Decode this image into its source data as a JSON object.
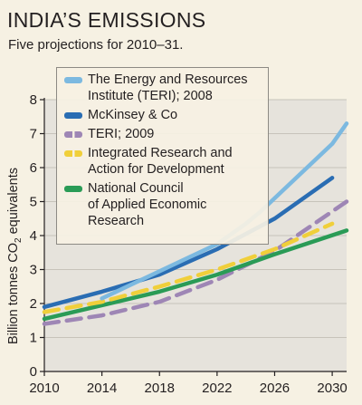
{
  "title": "INDIA’S EMISSIONS",
  "subtitle": "Five projections for 2010–31.",
  "chart_data": {
    "type": "line",
    "title": "INDIA’S EMISSIONS",
    "subtitle": "Five projections for 2010–31.",
    "xlabel": "",
    "ylabel": "Billion tonnes CO2 equivalents",
    "ylabel_main": "Billion tonnes CO",
    "ylabel_sub": "2",
    "ylabel_tail": " equivalents",
    "xlim": [
      2010,
      2031
    ],
    "ylim": [
      0,
      8
    ],
    "x_ticks": [
      2010,
      2014,
      2018,
      2022,
      2026,
      2030
    ],
    "y_ticks": [
      0,
      1,
      2,
      3,
      4,
      5,
      6,
      7,
      8
    ],
    "grid": true,
    "legend_position": "top-left",
    "series": [
      {
        "name": "The Energy and Resources Institute (TERI); 2008",
        "color": "#7cb9e0",
        "style": "solid",
        "points": [
          [
            2014,
            2.15
          ],
          [
            2016,
            2.55
          ],
          [
            2018,
            2.95
          ],
          [
            2020,
            3.35
          ],
          [
            2022,
            3.75
          ],
          [
            2024,
            4.35
          ],
          [
            2025,
            4.7
          ],
          [
            2027,
            5.5
          ],
          [
            2029,
            6.3
          ],
          [
            2030,
            6.7
          ],
          [
            2031,
            7.3
          ]
        ]
      },
      {
        "name": "McKinsey & Co",
        "color": "#2a6db3",
        "style": "solid",
        "points": [
          [
            2010,
            1.9
          ],
          [
            2014,
            2.35
          ],
          [
            2018,
            2.85
          ],
          [
            2022,
            3.6
          ],
          [
            2026,
            4.5
          ],
          [
            2030,
            5.7
          ]
        ]
      },
      {
        "name": "TERI; 2009",
        "color": "#9e86b5",
        "style": "dashed",
        "points": [
          [
            2010,
            1.4
          ],
          [
            2014,
            1.65
          ],
          [
            2018,
            2.05
          ],
          [
            2022,
            2.7
          ],
          [
            2026,
            3.55
          ],
          [
            2031,
            5.0
          ]
        ]
      },
      {
        "name": "Integrated Research and Action for Development",
        "color": "#f0cf3a",
        "style": "dashed",
        "points": [
          [
            2010,
            1.75
          ],
          [
            2014,
            2.05
          ],
          [
            2018,
            2.5
          ],
          [
            2022,
            3.0
          ],
          [
            2026,
            3.6
          ],
          [
            2030,
            4.35
          ]
        ]
      },
      {
        "name": "National Council of Applied Economic Research",
        "color": "#2a9b56",
        "style": "solid",
        "points": [
          [
            2010,
            1.55
          ],
          [
            2014,
            1.95
          ],
          [
            2018,
            2.35
          ],
          [
            2022,
            2.85
          ],
          [
            2026,
            3.45
          ],
          [
            2031,
            4.15
          ]
        ]
      }
    ]
  },
  "legend": {
    "items": [
      {
        "lines": [
          "The Energy and Resources",
          "Institute (TERI); 2008"
        ]
      },
      {
        "lines": [
          "McKinsey & Co"
        ]
      },
      {
        "lines": [
          "TERI; 2009"
        ]
      },
      {
        "lines": [
          "Integrated Research and",
          "Action for Development"
        ]
      },
      {
        "lines": [
          "National Council",
          "of Applied Economic",
          "Research"
        ]
      }
    ]
  }
}
